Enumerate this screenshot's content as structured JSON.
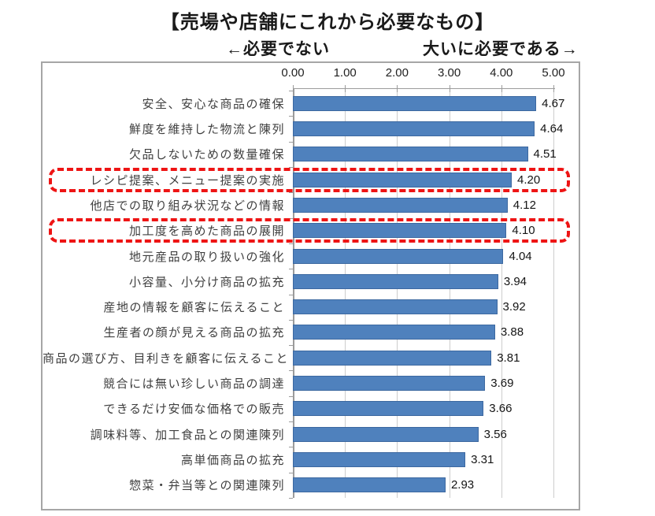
{
  "title": "【売場や店舗にこれから必要なもの】",
  "axis_notes": {
    "left": "←必要でない",
    "right": "大いに必要である→"
  },
  "chart_data": {
    "type": "bar",
    "orientation": "horizontal",
    "title": "【売場や店舗にこれから必要なもの】",
    "categories": [
      "安全、安心な商品の確保",
      "鮮度を維持した物流と陳列",
      "欠品しないための数量確保",
      "レシピ提案、メニュー提案の実施",
      "他店での取り組み状況などの情報",
      "加工度を高めた商品の展開",
      "地元産品の取り扱いの強化",
      "小容量、小分け商品の拡充",
      "産地の情報を顧客に伝えること",
      "生産者の顔が見える商品の拡充",
      "商品の選び方、目利きを顧客に伝えること",
      "競合には無い珍しい商品の調達",
      "できるだけ安価な価格での販売",
      "調味料等、加工食品との関連陳列",
      "高単価商品の拡充",
      "惣菜・弁当等との関連陳列"
    ],
    "values": [
      4.67,
      4.64,
      4.51,
      4.2,
      4.12,
      4.1,
      4.04,
      3.94,
      3.92,
      3.88,
      3.81,
      3.69,
      3.66,
      3.56,
      3.31,
      2.93
    ],
    "value_labels": [
      "4.67",
      "4.64",
      "4.51",
      "4.20",
      "4.12",
      "4.10",
      "4.04",
      "3.94",
      "3.92",
      "3.88",
      "3.81",
      "3.69",
      "3.66",
      "3.56",
      "3.31",
      "2.93"
    ],
    "xlim": [
      0,
      5
    ],
    "xticks": [
      "0.00",
      "1.00",
      "2.00",
      "3.00",
      "4.00",
      "5.00"
    ],
    "xtick_values": [
      0,
      1,
      2,
      3,
      4,
      5
    ],
    "grid": true,
    "legend": false,
    "bar_color": "#4f81bd",
    "bar_border_color": "#3c68a0",
    "highlight_color": "#ee1414",
    "highlighted_indices": [
      3,
      5
    ],
    "highlighted_categories": [
      "レシピ提案、メニュー提案の実施",
      "加工度を高めた商品の展開"
    ]
  }
}
